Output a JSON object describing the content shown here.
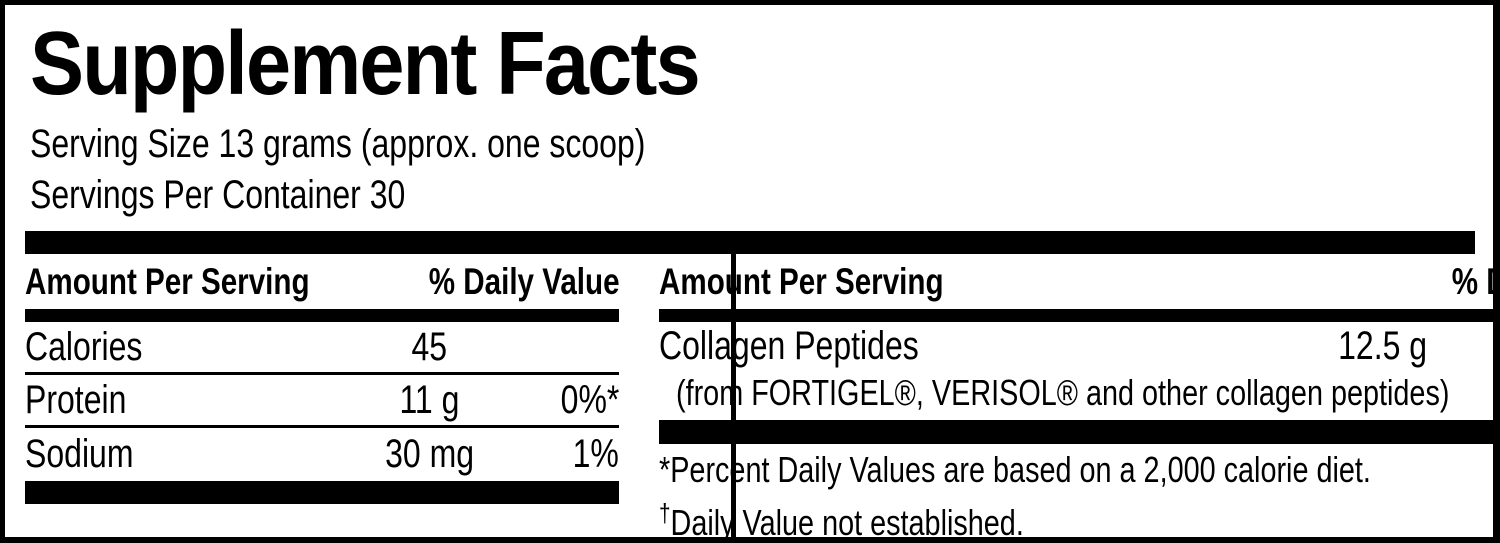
{
  "colors": {
    "ink": "#000000",
    "paper": "#ffffff"
  },
  "header": {
    "title": "Supplement Facts",
    "serving_size": "Serving Size 13 grams (approx. one scoop)",
    "servings_per_container": "Servings Per Container 30"
  },
  "table": {
    "left": {
      "header": {
        "amount_label": "Amount Per Serving",
        "dv_label": "% Daily Value"
      },
      "rows": [
        {
          "name": "Calories",
          "amount": "45",
          "dv": ""
        },
        {
          "name": "Protein",
          "amount": "11 g",
          "dv": "0%*"
        },
        {
          "name": "Sodium",
          "amount": "30 mg",
          "dv": "1%"
        }
      ]
    },
    "right": {
      "header": {
        "amount_label": "Amount Per Serving",
        "dv_label": "% Daily Value"
      },
      "rows": [
        {
          "name": "Collagen Peptides",
          "amount": "12.5 g",
          "dv": "†",
          "subtext": "(from FORTIGEL®, VERISOL® and other collagen peptides)"
        }
      ],
      "footnotes": [
        {
          "marker": "*",
          "text": "Percent Daily Values are based on a 2,000 calorie diet."
        },
        {
          "marker": "†",
          "text": "Daily Value not established."
        }
      ]
    }
  }
}
